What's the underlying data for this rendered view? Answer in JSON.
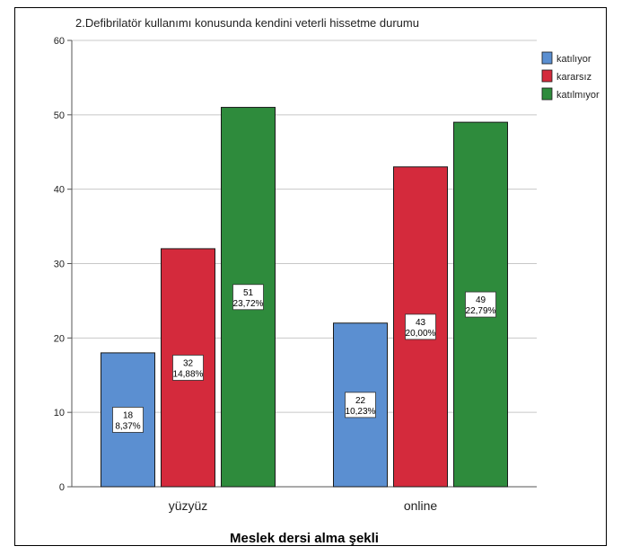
{
  "chart_data": {
    "type": "bar",
    "title": "2.Defibrilatör kullanımı konusunda kendini veterli hissetme durumu",
    "xlabel": "Meslek dersi alma şekli",
    "ylabel": "",
    "ylim": [
      0,
      60
    ],
    "yticks": [
      0,
      10,
      20,
      30,
      40,
      50,
      60
    ],
    "grid": true,
    "legend": "top-right",
    "categories": [
      "yüzyüz",
      "online"
    ],
    "series": [
      {
        "name": "katılıyor",
        "color": "#5b8fd1",
        "values": [
          18,
          22
        ],
        "percents": [
          "8,37%",
          "10,23%"
        ]
      },
      {
        "name": "kararsız",
        "color": "#d42a3c",
        "values": [
          32,
          43
        ],
        "percents": [
          "14,88%",
          "20,00%"
        ]
      },
      {
        "name": "katılmıyor",
        "color": "#2e8b3c",
        "values": [
          51,
          49
        ],
        "percents": [
          "23,72%",
          "22,79%"
        ]
      }
    ]
  }
}
